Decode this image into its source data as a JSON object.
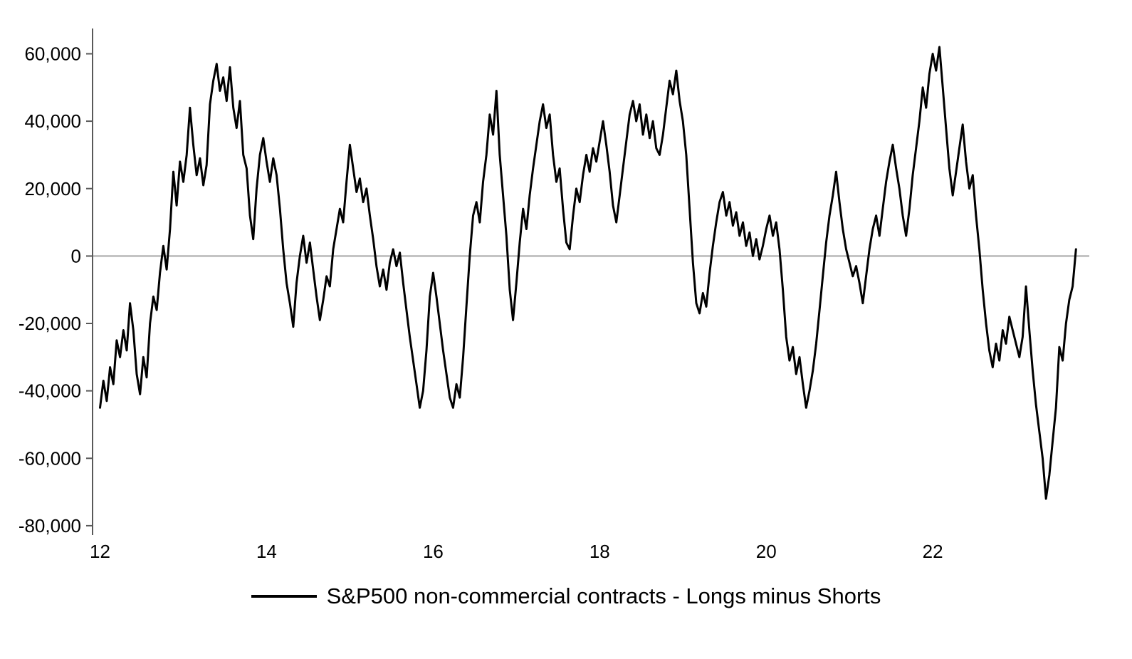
{
  "chart_data": {
    "type": "line",
    "title": "",
    "xlabel": "",
    "ylabel": "",
    "xlim": [
      11.91,
      23.88
    ],
    "ylim": [
      -81500,
      67500
    ],
    "x_ticks": [
      12,
      14,
      16,
      18,
      20,
      22
    ],
    "x_tick_labels": [
      "12",
      "14",
      "16",
      "18",
      "20",
      "22"
    ],
    "y_ticks": [
      -80000,
      -60000,
      -40000,
      -20000,
      0,
      20000,
      40000,
      60000
    ],
    "y_tick_labels": [
      "-80,000",
      "-60,000",
      "-40,000",
      "-20,000",
      "0",
      "20,000",
      "40,000",
      "60,000"
    ],
    "grid": false,
    "zero_line": true,
    "zero_line_color": "#a6a6a6",
    "axis_color": "#595959",
    "legend_position": "bottom",
    "legend": [
      {
        "label": "S&P500 non-commercial contracts - Longs minus Shorts",
        "color": "#000000"
      }
    ],
    "series": [
      {
        "name": "S&P500 non-commercial contracts - Longs minus Shorts",
        "color": "#000000",
        "stroke_width": 3,
        "x_start": 12.0,
        "x_step": 0.04,
        "values": [
          -45000,
          -37000,
          -43000,
          -33000,
          -38000,
          -25000,
          -30000,
          -22000,
          -28000,
          -14000,
          -22000,
          -35000,
          -41000,
          -30000,
          -36000,
          -20000,
          -12000,
          -16000,
          -5000,
          3000,
          -4000,
          8000,
          25000,
          15000,
          28000,
          22000,
          30000,
          44000,
          33000,
          24000,
          29000,
          21000,
          27000,
          45000,
          52000,
          57000,
          49000,
          53000,
          46000,
          56000,
          44000,
          38000,
          46000,
          30000,
          26000,
          12000,
          5000,
          20000,
          30000,
          35000,
          28000,
          22000,
          29000,
          24000,
          14000,
          2000,
          -8000,
          -14000,
          -21000,
          -8000,
          0,
          6000,
          -2000,
          4000,
          -4000,
          -12000,
          -19000,
          -13000,
          -6000,
          -9000,
          2000,
          8000,
          14000,
          10000,
          22000,
          33000,
          26000,
          19000,
          23000,
          16000,
          20000,
          12000,
          5000,
          -3000,
          -9000,
          -4000,
          -10000,
          -2000,
          2000,
          -3000,
          1000,
          -8000,
          -16000,
          -24000,
          -31000,
          -38000,
          -45000,
          -40000,
          -28000,
          -12000,
          -5000,
          -12000,
          -20000,
          -28000,
          -35000,
          -42000,
          -45000,
          -38000,
          -42000,
          -30000,
          -15000,
          0,
          12000,
          16000,
          10000,
          22000,
          30000,
          42000,
          36000,
          49000,
          30000,
          18000,
          6000,
          -10000,
          -19000,
          -8000,
          4000,
          14000,
          8000,
          18000,
          26000,
          33000,
          40000,
          45000,
          38000,
          42000,
          30000,
          22000,
          26000,
          14000,
          4000,
          2000,
          12000,
          20000,
          16000,
          24000,
          30000,
          25000,
          32000,
          28000,
          34000,
          40000,
          33000,
          25000,
          15000,
          10000,
          18000,
          26000,
          34000,
          42000,
          46000,
          40000,
          45000,
          36000,
          42000,
          35000,
          40000,
          32000,
          30000,
          36000,
          44000,
          52000,
          48000,
          55000,
          46000,
          40000,
          30000,
          14000,
          -2000,
          -14000,
          -17000,
          -11000,
          -15000,
          -5000,
          3000,
          10000,
          16000,
          19000,
          12000,
          16000,
          9000,
          13000,
          6000,
          10000,
          3000,
          7000,
          0,
          5000,
          -1000,
          3000,
          8000,
          12000,
          6000,
          10000,
          2000,
          -10000,
          -24000,
          -31000,
          -27000,
          -35000,
          -30000,
          -38000,
          -45000,
          -40000,
          -34000,
          -26000,
          -16000,
          -6000,
          4000,
          12000,
          18000,
          25000,
          16000,
          8000,
          2000,
          -2000,
          -6000,
          -3000,
          -8000,
          -14000,
          -6000,
          2000,
          8000,
          12000,
          6000,
          14000,
          22000,
          28000,
          33000,
          26000,
          20000,
          12000,
          6000,
          14000,
          24000,
          32000,
          40000,
          50000,
          44000,
          54000,
          60000,
          55000,
          62000,
          50000,
          38000,
          26000,
          18000,
          25000,
          32000,
          39000,
          28000,
          20000,
          24000,
          12000,
          2000,
          -10000,
          -20000,
          -28000,
          -33000,
          -26000,
          -31000,
          -22000,
          -26000,
          -18000,
          -22000,
          -26000,
          -30000,
          -24000,
          -9000,
          -22000,
          -34000,
          -44000,
          -52000,
          -60000,
          -72000,
          -65000,
          -55000,
          -45000,
          -27000,
          -31000,
          -20000,
          -13000,
          -9000,
          2000
        ]
      }
    ]
  }
}
